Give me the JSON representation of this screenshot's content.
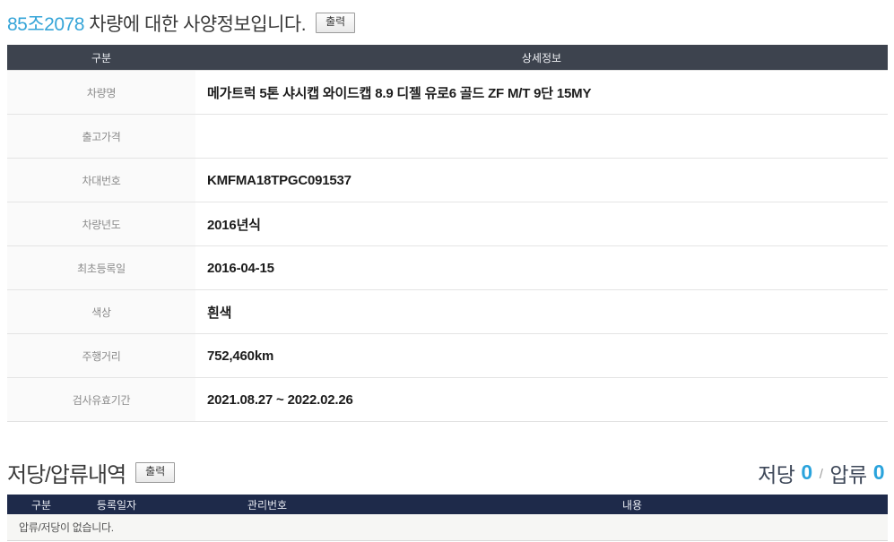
{
  "spec": {
    "title_vehicle_no": "85조2078",
    "title_suffix": " 차량에 대한 사양정보입니다.",
    "print_button": "출력",
    "table": {
      "col_category": "구분",
      "col_detail": "상세정보",
      "rows": [
        {
          "label": "차량명",
          "value": "메가트럭 5톤 샤시캡 와이드캡 8.9 디젤 유로6 골드 ZF M/T 9단 15MY"
        },
        {
          "label": "출고가격",
          "value": ""
        },
        {
          "label": "차대번호",
          "value": "KMFMA18TPGC091537"
        },
        {
          "label": "차량년도",
          "value": "2016년식"
        },
        {
          "label": "최초등록일",
          "value": "2016-04-15"
        },
        {
          "label": "색상",
          "value": "흰색"
        },
        {
          "label": "주행거리",
          "value": "752,460km"
        },
        {
          "label": "검사유효기간",
          "value": "2021.08.27 ~ 2022.02.26"
        }
      ]
    }
  },
  "lien": {
    "title": "저당/압류내역",
    "print_button": "출력",
    "summary": {
      "mortgage_label": "저당",
      "mortgage_count": "0",
      "separator": "/",
      "seizure_label": "압류",
      "seizure_count": "0"
    },
    "table": {
      "headers": [
        "구분",
        "등록일자",
        "관리번호",
        "내용"
      ],
      "empty_message": "압류/저당이 없습니다."
    }
  },
  "colors": {
    "accent_blue": "#36a5d8",
    "spec_header_bg": "#3d434e",
    "lien_header_bg": "#1e2a4a"
  }
}
